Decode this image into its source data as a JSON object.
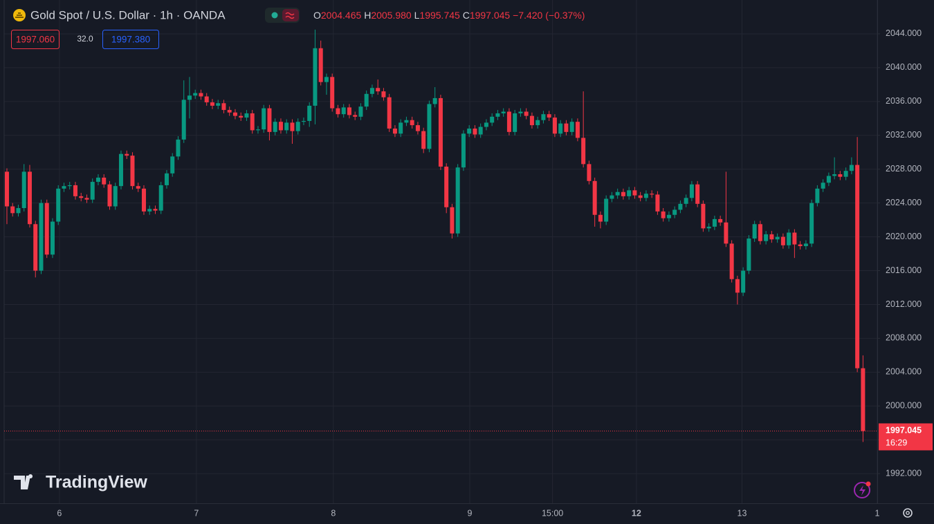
{
  "chart_data": {
    "type": "candlestick",
    "title": "Gold Spot / U.S. Dollar · 1h · OANDA",
    "header": {
      "o_label": "O",
      "o": "2004.465",
      "h_label": "H",
      "h": "2005.980",
      "l_label": "L",
      "l": "1995.745",
      "c_label": "C",
      "c": "1997.045",
      "change": "−7.420",
      "change_pct": "(−0.37%)"
    },
    "sell": "1997.060",
    "spread": "32.0",
    "buy": "1997.380",
    "last_price_label": "1997.045",
    "countdown": "16:29",
    "watermark": "TradingView",
    "up_color": "#089981",
    "down_color": "#f23645",
    "grid": true,
    "xlim": [
      -1.21,
      152.5
    ],
    "xticks": [
      {
        "value": 9.2,
        "label": "6"
      },
      {
        "value": 33.2,
        "label": "7"
      },
      {
        "value": 57.2,
        "label": "8"
      },
      {
        "value": 81.1,
        "label": "9"
      },
      {
        "value": 95.6,
        "label": "15:00"
      },
      {
        "value": 110.3,
        "label": "12"
      },
      {
        "value": 128.8,
        "label": "13"
      },
      {
        "value": 152.5,
        "label": "1"
      }
    ],
    "ylim": [
      1988.5,
      2048
    ],
    "yticks": [
      {
        "value": 1992,
        "label": "1992.000"
      },
      {
        "value": 1996,
        "label": "1996.000"
      },
      {
        "value": 2000,
        "label": "2000.000"
      },
      {
        "value": 2004,
        "label": "2004.000"
      },
      {
        "value": 2008,
        "label": "2008.000"
      },
      {
        "value": 2012,
        "label": "2012.000"
      },
      {
        "value": 2016,
        "label": "2016.000"
      },
      {
        "value": 2020,
        "label": "2020.000"
      },
      {
        "value": 2024,
        "label": "2024.000"
      },
      {
        "value": 2028,
        "label": "2028.000"
      },
      {
        "value": 2032,
        "label": "2032.000"
      },
      {
        "value": 2036,
        "label": "2036.000"
      },
      {
        "value": 2040,
        "label": "2040.000"
      },
      {
        "value": 2044,
        "label": "2044.000"
      }
    ],
    "open": [
      2027.7,
      2023.6,
      2022.8,
      2023.4,
      2027.7,
      2021.5,
      2016.0,
      2024.0,
      2017.9,
      2021.8,
      2025.7,
      2026.0,
      2026.1,
      2024.8,
      2024.6,
      2024.4,
      2026.5,
      2027.0,
      2026.2,
      2023.6,
      2026.0,
      2029.8,
      2029.6,
      2026.0,
      2025.7,
      2023.0,
      2023.3,
      2023.1,
      2026.1,
      2027.5,
      2029.5,
      2031.5,
      2036.2,
      2036.7,
      2037.0,
      2036.6,
      2035.9,
      2035.5,
      2035.8,
      2035.0,
      2034.7,
      2034.3,
      2034.1,
      2034.6,
      2032.6,
      2032.7,
      2035.2,
      2032.4,
      2033.6,
      2032.6,
      2033.5,
      2032.5,
      2033.6,
      2033.7,
      2035.5,
      2042.3,
      2038.3,
      2038.9,
      2035.2,
      2034.5,
      2035.3,
      2034.4,
      2034.2,
      2035.4,
      2036.9,
      2037.6,
      2037.2,
      2036.5,
      2032.8,
      2032.2,
      2033.5,
      2033.8,
      2033.2,
      2032.5,
      2030.4,
      2035.7,
      2036.4,
      2028.3,
      2023.5,
      2020.4,
      2028.2,
      2032.2,
      2032.8,
      2032.1,
      2033.0,
      2033.5,
      2034.2,
      2034.6,
      2034.8,
      2032.4,
      2034.6,
      2034.8,
      2034.3,
      2033.2,
      2033.8,
      2034.5,
      2034.1,
      2032.2,
      2033.4,
      2032.4,
      2033.6,
      2031.7,
      2028.6,
      2026.6,
      2022.6,
      2021.8,
      2024.5,
      2024.9,
      2025.3,
      2024.8,
      2025.5,
      2024.9,
      2024.6,
      2025.1,
      2025.0,
      2023.0,
      2022.2,
      2022.6,
      2023.2,
      2023.9,
      2024.6,
      2026.2,
      2023.9,
      2021.0,
      2021.2,
      2022.1,
      2021.7,
      2019.2,
      2015.0,
      2013.4,
      2016.0,
      2019.8,
      2021.5,
      2019.5,
      2020.3,
      2019.7,
      2020.0,
      2019.0,
      2020.5,
      2019.1,
      2018.9,
      2019.2,
      2024.0,
      2025.7,
      2026.4,
      2027.2,
      2027.4,
      2027.1,
      2027.8,
      2028.5,
      2004.465
    ],
    "high": [
      2028.1,
      2024.0,
      2023.8,
      2028.6,
      2028.5,
      2021.9,
      2024.4,
      2024.4,
      2022.2,
      2026.1,
      2026.4,
      2026.5,
      2026.5,
      2025.2,
      2025.0,
      2026.9,
      2027.4,
      2027.4,
      2026.6,
      2026.4,
      2030.2,
      2030.2,
      2030.0,
      2026.4,
      2026.1,
      2023.7,
      2023.7,
      2026.5,
      2027.9,
      2029.9,
      2031.9,
      2038.5,
      2038.9,
      2037.4,
      2037.4,
      2037.0,
      2036.3,
      2036.2,
      2036.2,
      2035.4,
      2035.1,
      2034.7,
      2035.0,
      2035.0,
      2033.1,
      2035.6,
      2035.6,
      2034.0,
      2034.0,
      2033.9,
      2033.9,
      2034.0,
      2034.1,
      2035.9,
      2044.5,
      2043.2,
      2039.3,
      2039.3,
      2035.6,
      2035.7,
      2035.7,
      2034.8,
      2035.8,
      2037.3,
      2038.0,
      2038.6,
      2037.6,
      2036.9,
      2033.2,
      2033.9,
      2034.2,
      2034.2,
      2033.6,
      2032.9,
      2036.1,
      2037.7,
      2036.8,
      2028.7,
      2023.9,
      2028.6,
      2032.6,
      2033.2,
      2033.2,
      2033.4,
      2033.9,
      2034.6,
      2035.0,
      2035.2,
      2035.2,
      2035.0,
      2035.2,
      2035.2,
      2034.7,
      2034.2,
      2034.9,
      2034.9,
      2034.5,
      2033.8,
      2033.8,
      2034.0,
      2034.0,
      2037.2,
      2029.0,
      2027.0,
      2023.0,
      2024.9,
      2025.3,
      2025.7,
      2025.7,
      2025.9,
      2025.9,
      2025.3,
      2025.5,
      2025.5,
      2025.4,
      2023.4,
      2023.0,
      2023.6,
      2024.3,
      2025.0,
      2026.6,
      2026.6,
      2024.3,
      2021.6,
      2022.5,
      2022.5,
      2027.7,
      2019.6,
      2015.4,
      2016.4,
      2020.2,
      2021.9,
      2021.9,
      2020.7,
      2020.7,
      2020.4,
      2020.4,
      2020.9,
      2020.9,
      2019.5,
      2019.6,
      2024.4,
      2026.1,
      2026.8,
      2027.6,
      2029.4,
      2027.8,
      2028.2,
      2029.4,
      2031.8,
      2005.98
    ],
    "low": [
      2021.5,
      2022.4,
      2022.4,
      2023.0,
      2021.1,
      2015.2,
      2015.6,
      2017.5,
      2017.5,
      2021.4,
      2025.3,
      2025.6,
      2024.4,
      2024.2,
      2024.0,
      2024.0,
      2026.1,
      2025.8,
      2023.2,
      2023.2,
      2025.6,
      2029.2,
      2025.6,
      2025.3,
      2022.6,
      2022.6,
      2022.7,
      2022.7,
      2025.7,
      2027.1,
      2029.1,
      2031.1,
      2034.0,
      2036.3,
      2036.2,
      2035.5,
      2035.1,
      2035.1,
      2034.6,
      2034.3,
      2033.9,
      2033.7,
      2033.7,
      2032.2,
      2032.2,
      2032.3,
      2031.4,
      2032.0,
      2032.2,
      2032.2,
      2031.0,
      2032.1,
      2033.2,
      2033.0,
      2033.3,
      2037.9,
      2036.8,
      2034.8,
      2034.1,
      2034.1,
      2034.0,
      2033.8,
      2033.8,
      2035.0,
      2036.5,
      2036.8,
      2036.1,
      2032.4,
      2031.8,
      2031.8,
      2033.1,
      2032.8,
      2032.1,
      2029.9,
      2030.0,
      2035.3,
      2027.9,
      2022.8,
      2019.8,
      2020.0,
      2027.8,
      2031.8,
      2031.7,
      2031.7,
      2032.6,
      2033.1,
      2033.8,
      2034.2,
      2032.0,
      2032.0,
      2034.2,
      2033.9,
      2032.8,
      2032.8,
      2033.4,
      2033.7,
      2031.8,
      2031.8,
      2032.0,
      2032.0,
      2031.3,
      2028.2,
      2026.2,
      2021.2,
      2021.0,
      2021.4,
      2024.1,
      2024.5,
      2024.4,
      2024.4,
      2024.5,
      2024.2,
      2024.2,
      2024.6,
      2022.6,
      2021.8,
      2021.8,
      2022.2,
      2022.8,
      2023.5,
      2024.2,
      2023.5,
      2020.6,
      2020.6,
      2020.8,
      2021.3,
      2018.8,
      2014.6,
      2012.0,
      2013.0,
      2015.6,
      2019.4,
      2019.1,
      2019.1,
      2019.3,
      2019.3,
      2018.6,
      2018.6,
      2017.5,
      2018.5,
      2018.5,
      2018.8,
      2023.6,
      2025.3,
      2026.0,
      2026.8,
      2026.7,
      2026.7,
      2027.4,
      2004.0,
      1995.745
    ],
    "close": [
      2023.6,
      2022.8,
      2023.4,
      2027.7,
      2021.5,
      2016.0,
      2024.0,
      2017.9,
      2021.8,
      2025.7,
      2026.0,
      2026.1,
      2024.8,
      2024.6,
      2024.4,
      2026.5,
      2027.0,
      2026.2,
      2023.6,
      2026.0,
      2029.8,
      2029.6,
      2026.0,
      2025.7,
      2023.0,
      2023.3,
      2023.1,
      2026.1,
      2027.5,
      2029.5,
      2031.5,
      2036.2,
      2036.7,
      2037.0,
      2036.6,
      2035.9,
      2035.5,
      2035.8,
      2035.0,
      2034.7,
      2034.3,
      2034.1,
      2034.6,
      2032.6,
      2032.7,
      2035.2,
      2032.4,
      2033.6,
      2032.6,
      2033.5,
      2032.5,
      2033.6,
      2033.7,
      2035.5,
      2042.3,
      2038.3,
      2038.9,
      2035.2,
      2034.5,
      2035.3,
      2034.4,
      2034.2,
      2035.4,
      2036.9,
      2037.6,
      2037.2,
      2036.5,
      2032.8,
      2032.2,
      2033.5,
      2033.8,
      2033.2,
      2032.5,
      2030.4,
      2035.7,
      2036.4,
      2028.3,
      2023.5,
      2020.4,
      2028.2,
      2032.2,
      2032.8,
      2032.1,
      2033.0,
      2033.5,
      2034.2,
      2034.6,
      2034.8,
      2032.4,
      2034.6,
      2034.8,
      2034.3,
      2033.2,
      2033.8,
      2034.5,
      2034.1,
      2032.2,
      2033.4,
      2032.4,
      2033.6,
      2031.7,
      2028.6,
      2026.6,
      2022.6,
      2021.8,
      2024.5,
      2024.9,
      2025.3,
      2024.8,
      2025.5,
      2024.9,
      2024.6,
      2025.1,
      2025.0,
      2023.0,
      2022.2,
      2022.6,
      2023.2,
      2023.9,
      2024.6,
      2026.2,
      2023.9,
      2021.0,
      2021.2,
      2022.1,
      2021.7,
      2019.2,
      2015.0,
      2013.4,
      2016.0,
      2019.8,
      2021.5,
      2019.5,
      2020.3,
      2019.7,
      2020.0,
      2019.0,
      2020.5,
      2019.1,
      2018.9,
      2019.2,
      2024.0,
      2025.7,
      2026.4,
      2027.2,
      2027.4,
      2027.1,
      2027.8,
      2028.5,
      2004.465,
      1997.045
    ]
  }
}
